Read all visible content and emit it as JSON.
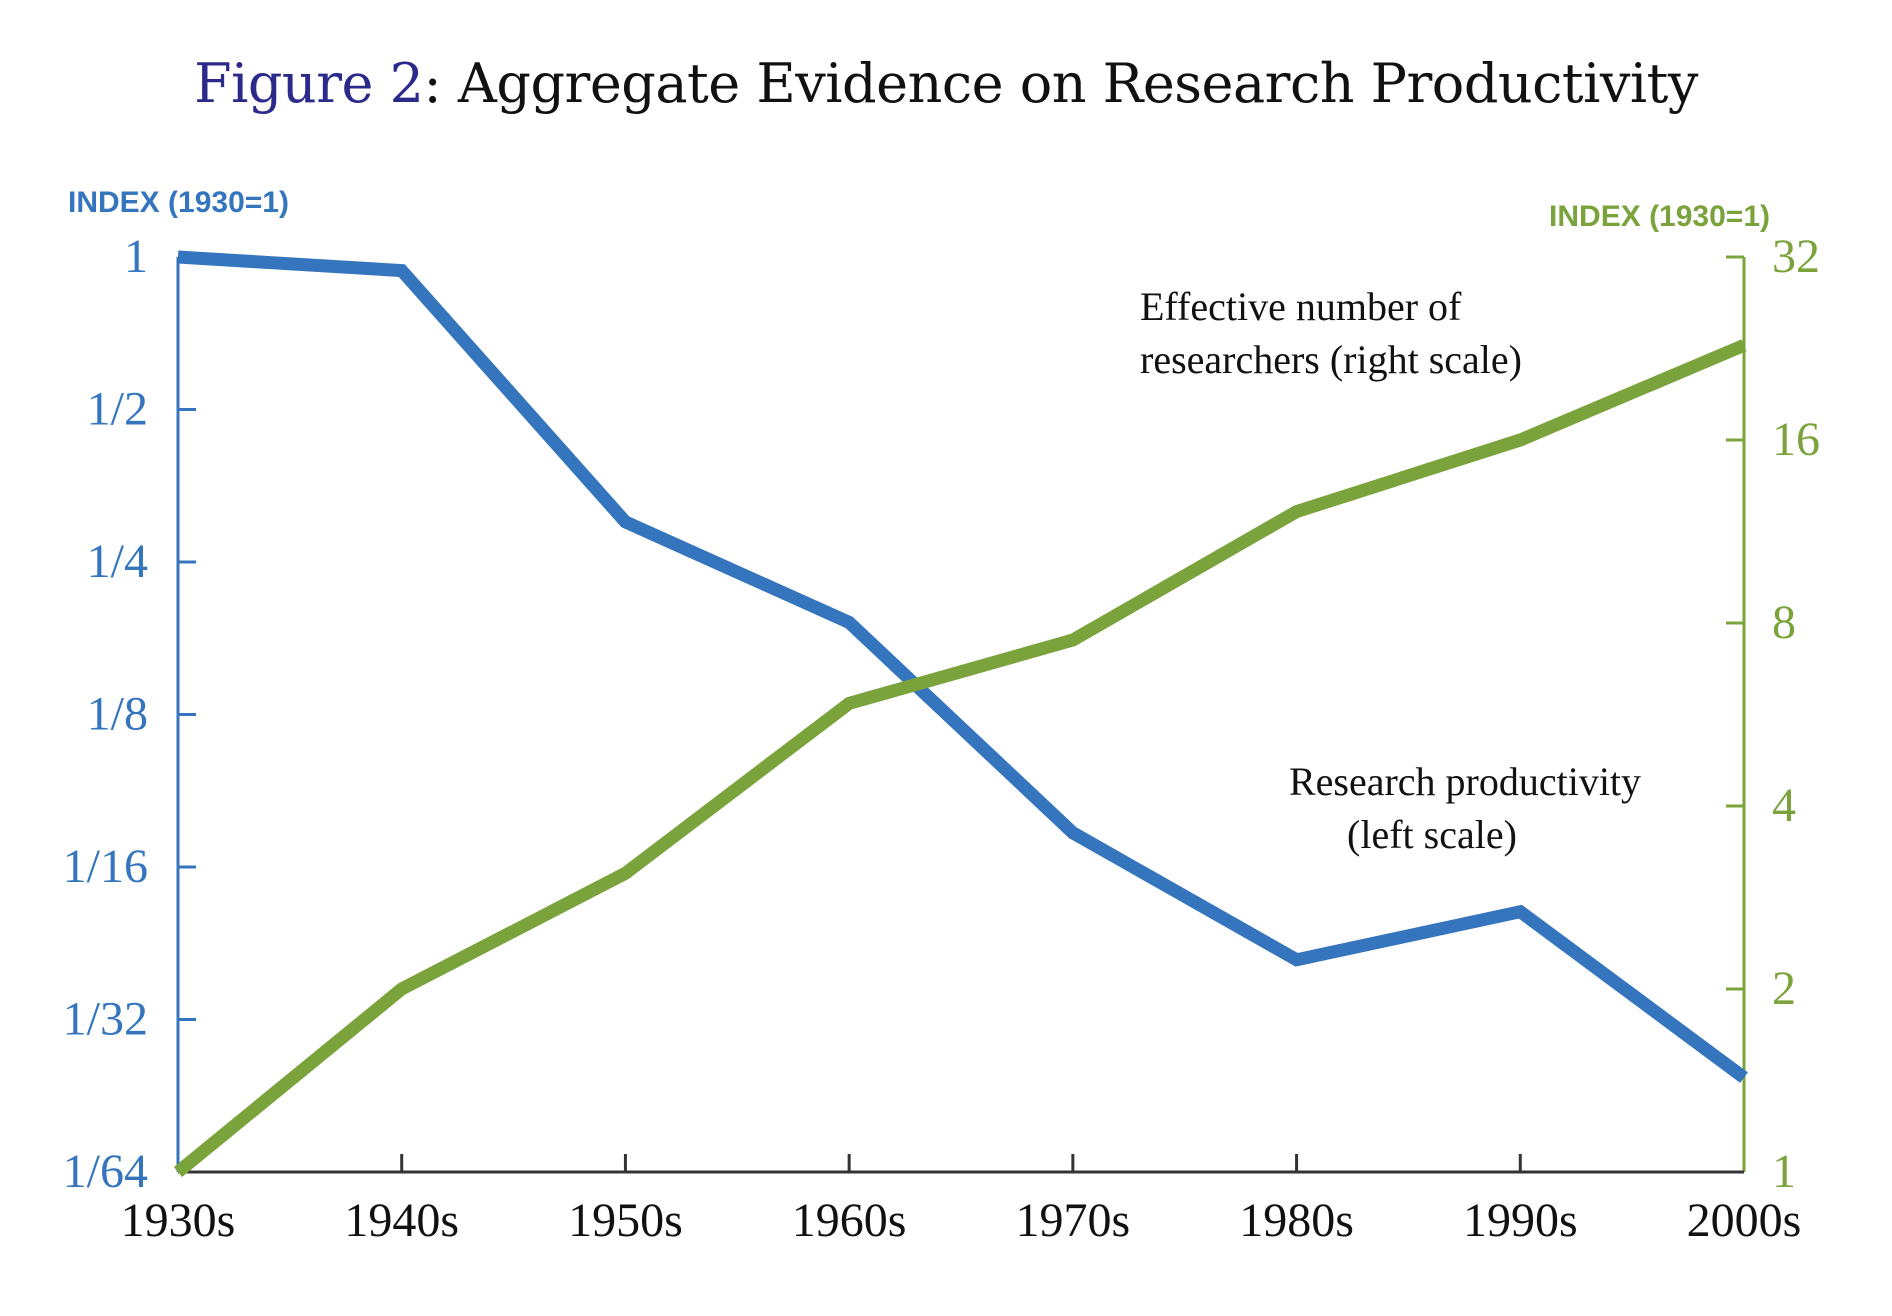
{
  "title": {
    "figure_label": "Figure 2",
    "text": ": Aggregate Evidence on Research Productivity"
  },
  "colors": {
    "productivity": "#3475bd",
    "researchers": "#7ba33c",
    "figure_label": "#2b2a8a",
    "x_axis": "#333333"
  },
  "chart_data": {
    "type": "line",
    "title": "Figure 2: Aggregate Evidence on Research Productivity",
    "x": [
      "1930s",
      "1940s",
      "1950s",
      "1960s",
      "1970s",
      "1980s",
      "1990s",
      "2000s"
    ],
    "xlabel": "",
    "y_left": {
      "label": "INDEX (1930=1)",
      "scale": "log2",
      "range": [
        0.015625,
        1
      ],
      "ticks": [
        1,
        0.5,
        0.25,
        0.125,
        0.0625,
        0.03125,
        0.015625
      ],
      "tick_labels": [
        "1",
        "1/2",
        "1/4",
        "1/8",
        "1/16",
        "1/32",
        "1/64"
      ]
    },
    "y_right": {
      "label": "INDEX (1930=1)",
      "scale": "log2",
      "range": [
        1,
        32
      ],
      "ticks": [
        32,
        16,
        8,
        4,
        2,
        1
      ],
      "tick_labels": [
        "32",
        "16",
        "8",
        "4",
        "2",
        "1"
      ]
    },
    "series": [
      {
        "name": "Research productivity (left scale)",
        "axis": "left",
        "values": [
          1.0,
          0.94,
          0.3,
          0.19,
          0.073,
          0.041,
          0.051,
          0.024
        ]
      },
      {
        "name": "Effective number of researchers (right scale)",
        "axis": "right",
        "values": [
          1.0,
          2.0,
          3.1,
          5.9,
          7.5,
          12.2,
          16.0,
          22.9
        ]
      }
    ],
    "annotations": [
      {
        "series": "researchers",
        "lines": [
          "Effective number of",
          "researchers (right scale)"
        ]
      },
      {
        "series": "productivity",
        "lines": [
          "Research productivity",
          "(left scale)"
        ]
      }
    ],
    "grid": false,
    "legend": "none (inline annotations)"
  }
}
